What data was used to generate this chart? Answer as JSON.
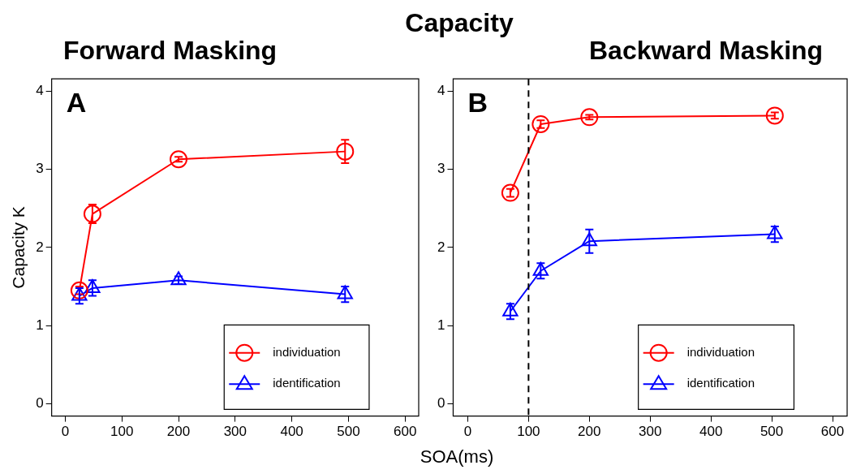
{
  "chart_data": [
    {
      "type": "line",
      "subtitle": "Forward Masking",
      "xlabel": "SOA(ms)",
      "ylabel": "Capacity K",
      "annotations": [
        "A"
      ],
      "xlim": [
        -24,
        624
      ],
      "ylim": [
        -0.16,
        4.16
      ],
      "xticks": [
        0,
        100,
        200,
        300,
        400,
        500,
        600
      ],
      "yticks": [
        0,
        1,
        2,
        3,
        4
      ],
      "grid": false,
      "legend": "bottom right",
      "series": [
        {
          "name": "individuation",
          "color": "#ff0000",
          "marker": "circle",
          "x": [
            25,
            48,
            200,
            494
          ],
          "values": [
            1.45,
            2.43,
            3.13,
            3.23
          ],
          "errors": [
            0.05,
            0.12,
            0.03,
            0.15
          ]
        },
        {
          "name": "identification",
          "color": "#0000ff",
          "marker": "triangle",
          "x": [
            25,
            48,
            200,
            494
          ],
          "values": [
            1.38,
            1.48,
            1.58,
            1.4
          ],
          "errors": [
            0.1,
            0.1,
            0.05,
            0.1
          ]
        }
      ]
    },
    {
      "type": "line",
      "title": "Capacity",
      "subtitle": "Backward Masking",
      "annotations": [
        "B"
      ],
      "xlim": [
        -24,
        624
      ],
      "ylim": [
        -0.16,
        4.16
      ],
      "xticks": [
        0,
        100,
        200,
        300,
        400,
        500,
        600
      ],
      "yticks": [
        0,
        1,
        2,
        3,
        4
      ],
      "grid": false,
      "legend": "bottom right",
      "ref_lines": [
        {
          "axis": "x",
          "value": 100,
          "color": "#000000",
          "line_style": "dashed"
        }
      ],
      "series": [
        {
          "name": "individuation",
          "color": "#ff0000",
          "marker": "circle",
          "x": [
            70,
            120,
            200,
            505
          ],
          "values": [
            2.7,
            3.58,
            3.67,
            3.69
          ],
          "errors": [
            0.05,
            0.05,
            0.03,
            0.04
          ]
        },
        {
          "name": "identification",
          "color": "#0000ff",
          "marker": "triangle",
          "x": [
            70,
            120,
            200,
            505
          ],
          "values": [
            1.18,
            1.7,
            2.08,
            2.17
          ],
          "errors": [
            0.1,
            0.1,
            0.15,
            0.1
          ]
        }
      ]
    }
  ]
}
